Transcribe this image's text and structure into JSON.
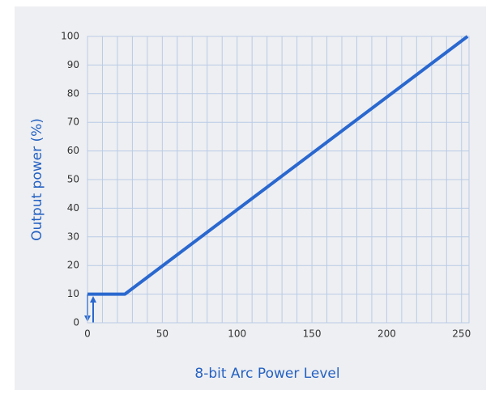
{
  "chart_data": {
    "type": "line",
    "xlabel": "8-bit Arc Power Level",
    "ylabel": "Output power (%)",
    "series": [
      {
        "color": "#2a68cf",
        "x": [
          0,
          25,
          254
        ],
        "values": [
          10,
          10,
          100
        ]
      }
    ],
    "xlim": [
      0,
      255
    ],
    "ylim": [
      0,
      100
    ],
    "xticks": [
      0,
      50,
      100,
      150,
      200,
      250
    ],
    "xgrid": [
      0,
      10,
      20,
      30,
      40,
      50,
      60,
      70,
      80,
      90,
      100,
      110,
      120,
      130,
      140,
      150,
      160,
      170,
      180,
      190,
      200,
      210,
      220,
      230,
      240,
      250
    ],
    "yticks": [
      0,
      10,
      20,
      30,
      40,
      50,
      60,
      70,
      80,
      90,
      100
    ],
    "grid": true
  }
}
